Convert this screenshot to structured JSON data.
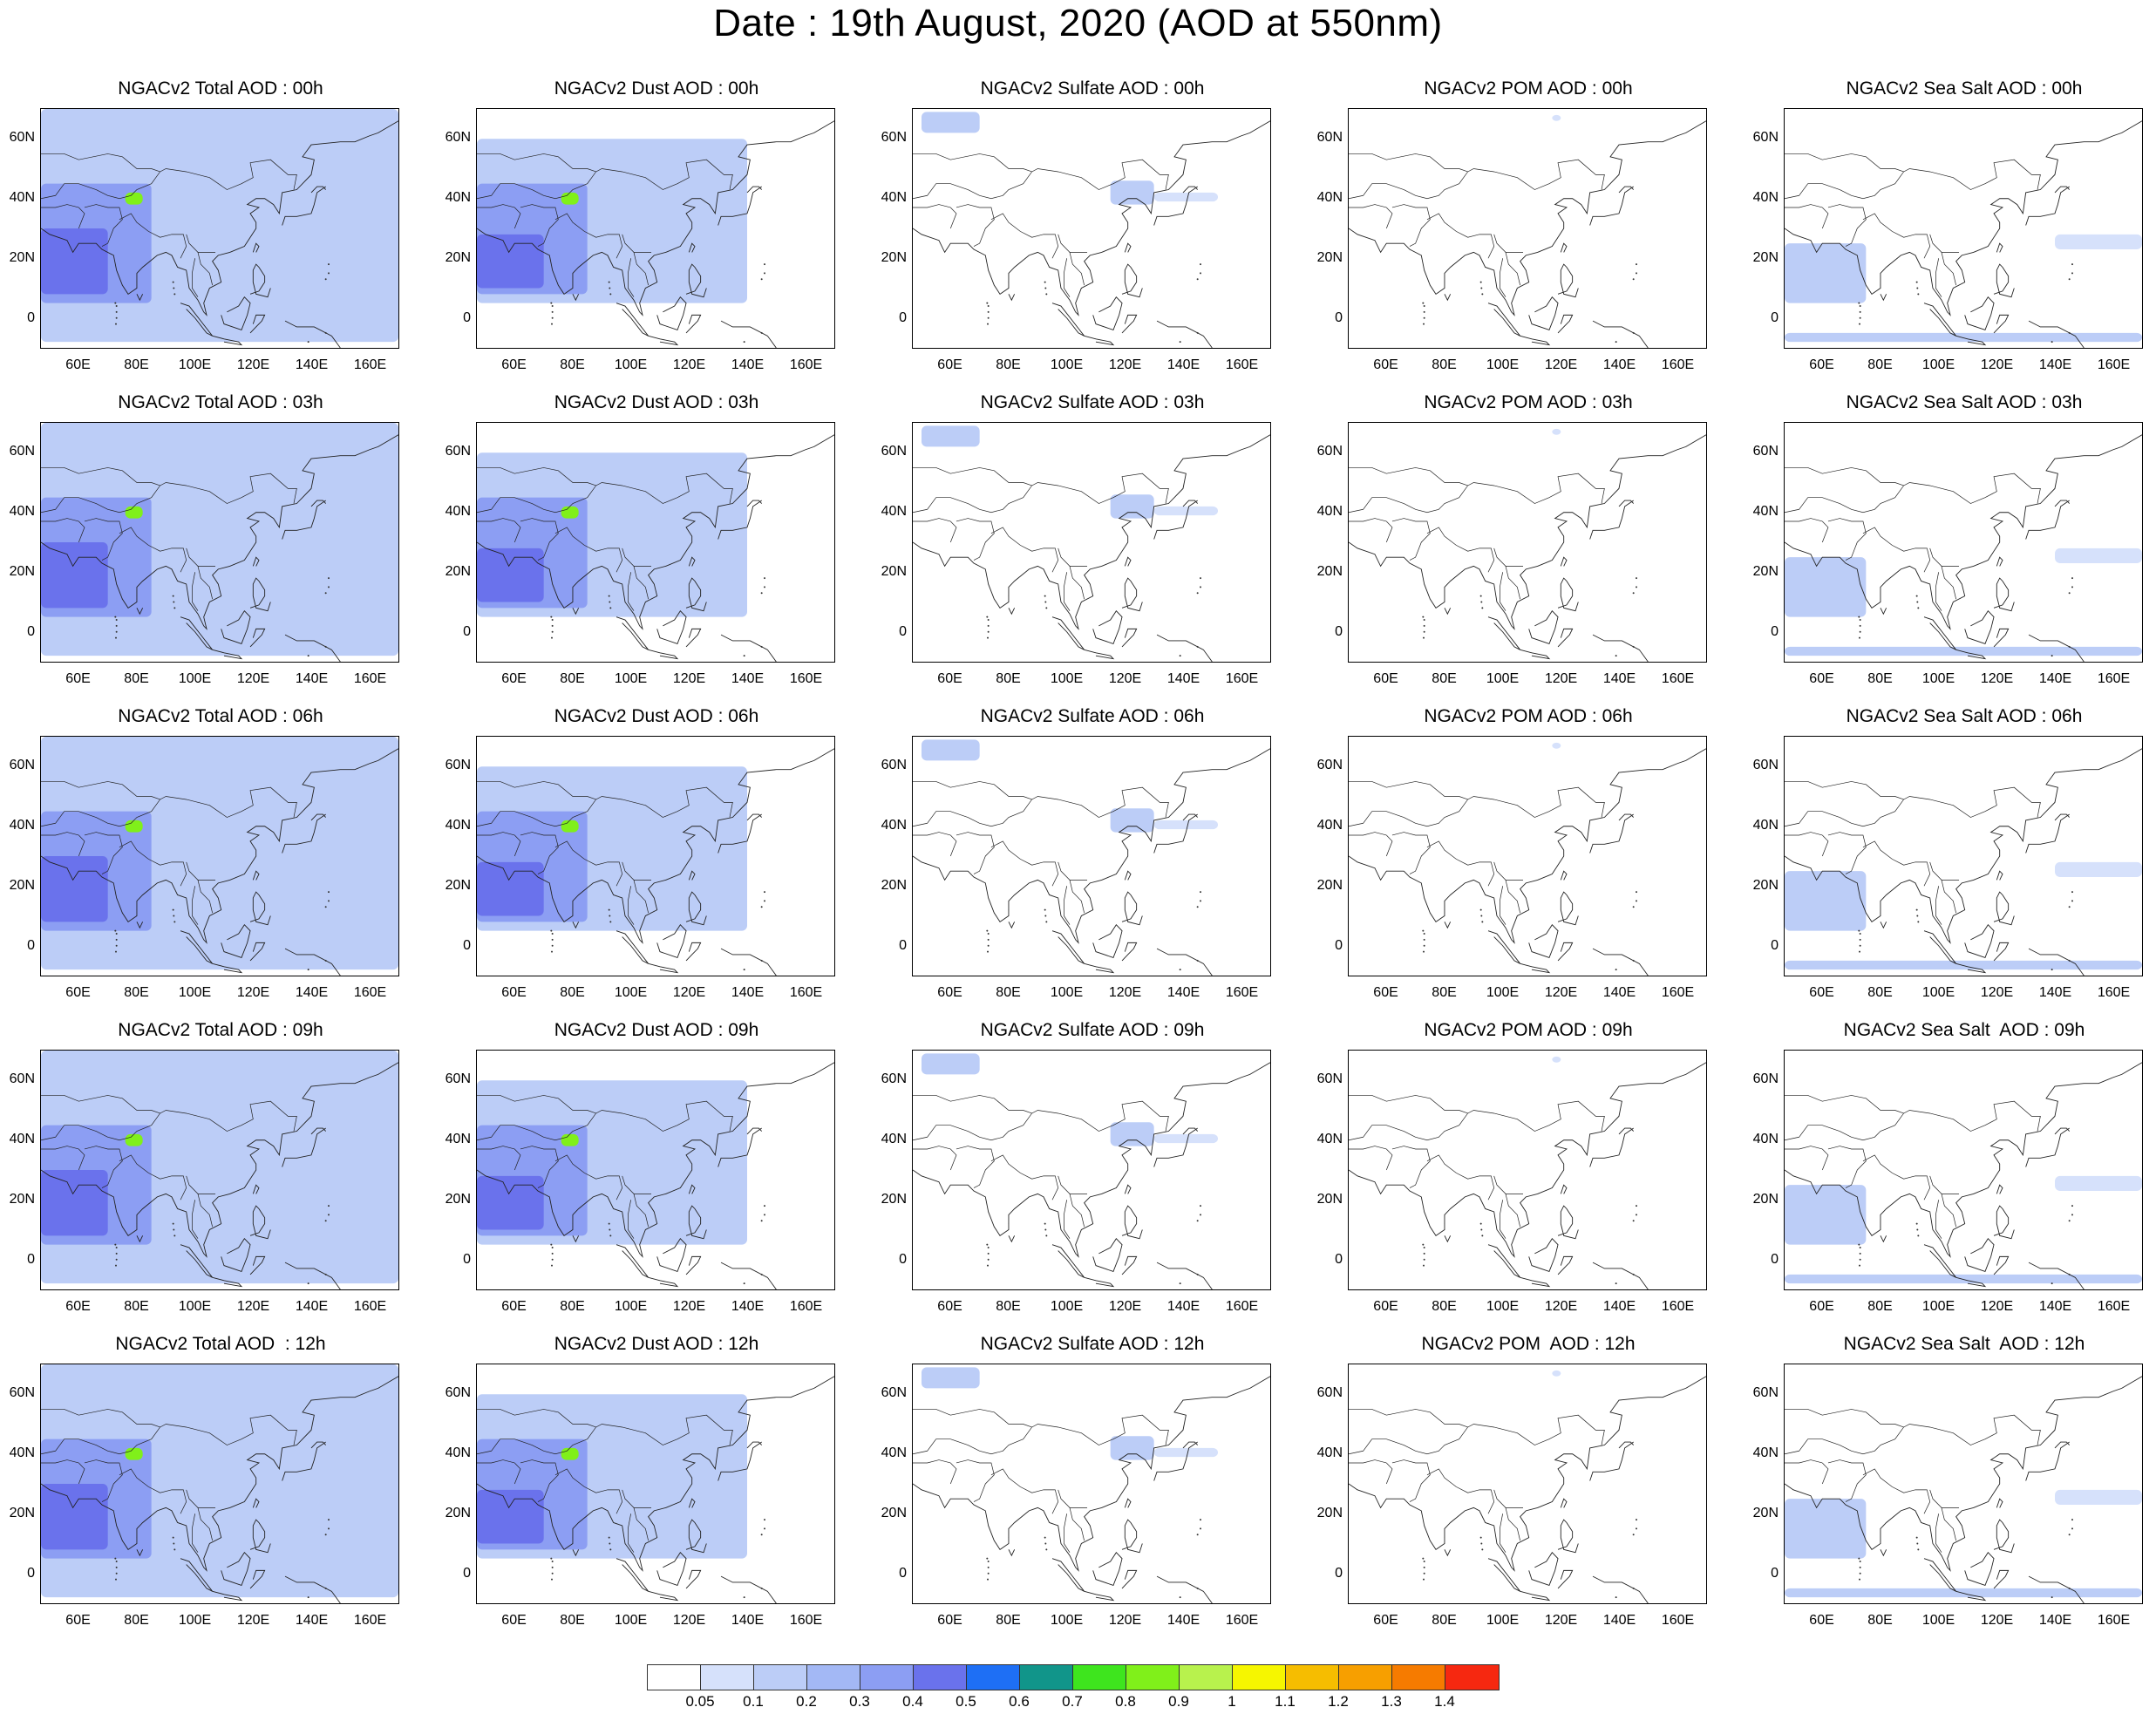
{
  "title": "Date : 19th August, 2020 (AOD at 550nm)",
  "map": {
    "lon_range": [
      47,
      170
    ],
    "lat_range": [
      -10,
      70
    ],
    "lat_ticks": [
      {
        "v": 60,
        "l": "60N"
      },
      {
        "v": 40,
        "l": "40N"
      },
      {
        "v": 20,
        "l": "20N"
      },
      {
        "v": 0,
        "l": "0"
      }
    ],
    "lon_ticks": [
      {
        "v": 60,
        "l": "60E"
      },
      {
        "v": 80,
        "l": "80E"
      },
      {
        "v": 100,
        "l": "100E"
      },
      {
        "v": 120,
        "l": "120E"
      },
      {
        "v": 140,
        "l": "140E"
      },
      {
        "v": 160,
        "l": "160E"
      }
    ]
  },
  "panels": [
    [
      "NGACv2 Total AOD : 00h",
      "NGACv2 Dust AOD : 00h",
      "NGACv2 Sulfate AOD : 00h",
      "NGACv2 POM AOD : 00h",
      "NGACv2 Sea Salt AOD : 00h"
    ],
    [
      "NGACv2 Total AOD : 03h",
      "NGACv2 Dust AOD : 03h",
      "NGACv2 Sulfate AOD : 03h",
      "NGACv2 POM AOD : 03h",
      "NGACv2 Sea Salt AOD : 03h"
    ],
    [
      "NGACv2 Total AOD : 06h",
      "NGACv2 Dust AOD : 06h",
      "NGACv2 Sulfate AOD : 06h",
      "NGACv2 POM AOD : 06h",
      "NGACv2 Sea Salt AOD : 06h"
    ],
    [
      "NGACv2 Total AOD : 09h",
      "NGACv2 Dust AOD : 09h",
      "NGACv2 Sulfate AOD : 09h",
      "NGACv2 POM AOD : 09h",
      "NGACv2 Sea Salt  AOD : 09h"
    ],
    [
      "NGACv2 Total AOD  : 12h",
      "NGACv2 Dust AOD : 12h",
      "NGACv2 Sulfate AOD : 12h",
      "NGACv2 POM  AOD : 12h",
      "NGACv2 Sea Salt  AOD : 12h"
    ]
  ],
  "colorbar": {
    "colors": [
      "#ffffff",
      "#d6e1fb",
      "#bccdf7",
      "#a3b8f5",
      "#8c9ef3",
      "#6a72ec",
      "#1e6ff5",
      "#11958a",
      "#3ee51e",
      "#80f01a",
      "#b8f24d",
      "#f6f600",
      "#f6bd00",
      "#f79f00",
      "#f67b00",
      "#f62810"
    ],
    "labels": [
      "0.05",
      "0.1",
      "0.2",
      "0.3",
      "0.4",
      "0.5",
      "0.6",
      "0.7",
      "0.8",
      "0.9",
      "1",
      "1.1",
      "1.2",
      "1.3",
      "1.4"
    ]
  },
  "chart_data": {
    "type": "heatmap",
    "title": "Date : 19th August, 2020 (AOD at 550nm)",
    "variables": [
      "Total",
      "Dust",
      "Sulfate",
      "POM",
      "Sea Salt"
    ],
    "forecast_hours": [
      "00h",
      "03h",
      "06h",
      "09h",
      "12h"
    ],
    "lon_range": [
      47,
      170
    ],
    "lat_range": [
      -10,
      70
    ],
    "levels": [
      0.05,
      0.1,
      0.2,
      0.3,
      0.4,
      0.5,
      0.6,
      0.7,
      0.8,
      0.9,
      1,
      1.1,
      1.2,
      1.3,
      1.4
    ],
    "features": {
      "Total": [
        {
          "lon": [
            47,
            170
          ],
          "lat": [
            -8,
            70
          ],
          "aod": 0.1,
          "desc": "broad haze"
        },
        {
          "lon": [
            47,
            85
          ],
          "lat": [
            5,
            45
          ],
          "aod": 0.3
        },
        {
          "lon": [
            47,
            70
          ],
          "lat": [
            8,
            30
          ],
          "aod": 0.4
        },
        {
          "lon": [
            76,
            82
          ],
          "lat": [
            38,
            42
          ],
          "aod": 0.8
        }
      ],
      "Dust": [
        {
          "lon": [
            47,
            140
          ],
          "lat": [
            5,
            60
          ],
          "aod": 0.1
        },
        {
          "lon": [
            47,
            85
          ],
          "lat": [
            8,
            45
          ],
          "aod": 0.3
        },
        {
          "lon": [
            47,
            70
          ],
          "lat": [
            10,
            28
          ],
          "aod": 0.4
        },
        {
          "lon": [
            76,
            82
          ],
          "lat": [
            38,
            42
          ],
          "aod": 0.8
        }
      ],
      "Sulfate": [
        {
          "lon": [
            50,
            70
          ],
          "lat": [
            62,
            69
          ],
          "aod": 0.1
        },
        {
          "lon": [
            115,
            130
          ],
          "lat": [
            38,
            46
          ],
          "aod": 0.1
        },
        {
          "lon": [
            130,
            152
          ],
          "lat": [
            39,
            42
          ],
          "aod": 0.05
        }
      ],
      "POM": [
        {
          "lon": [
            117,
            120
          ],
          "lat": [
            66,
            68
          ],
          "aod": 0.05
        }
      ],
      "Sea Salt": [
        {
          "lon": [
            47,
            75
          ],
          "lat": [
            5,
            25
          ],
          "aod": 0.1
        },
        {
          "lon": [
            47,
            170
          ],
          "lat": [
            -8,
            -5
          ],
          "aod": 0.1
        },
        {
          "lon": [
            140,
            170
          ],
          "lat": [
            23,
            28
          ],
          "aod": 0.05
        }
      ]
    }
  }
}
